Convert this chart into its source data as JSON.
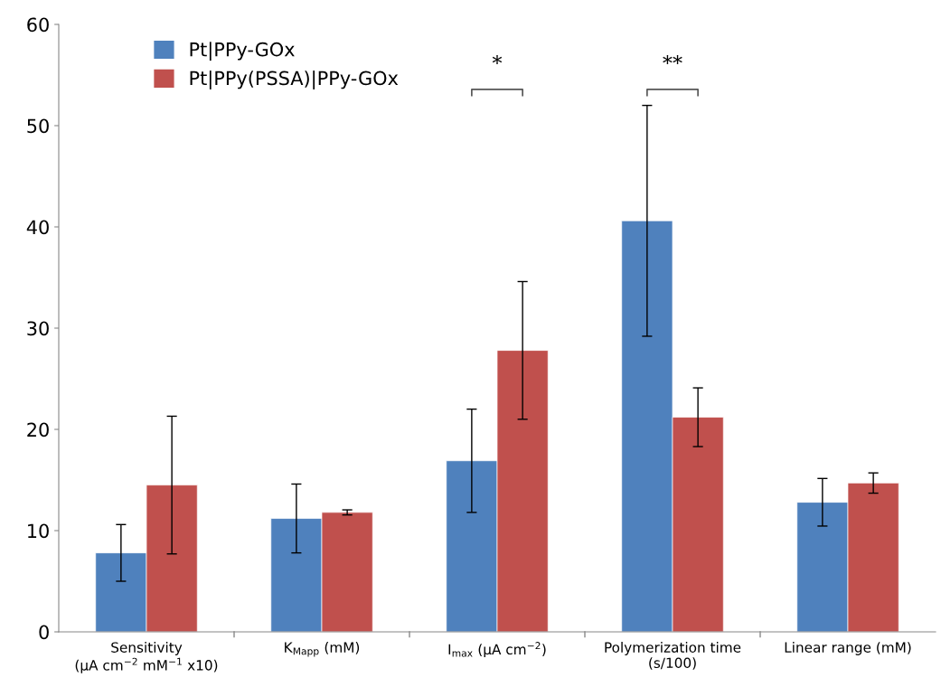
{
  "chart_data": {
    "type": "bar",
    "categories": [
      "Sensitivity\n(µA cm$^{−2}$ mM$^{−1}$ x10)",
      "K$_{Mapp}$ (mM)",
      "I$_{max}$ (µA cm$^{−2}$)",
      "Polymerization time\n(s/100)",
      "Linear range (mM)"
    ],
    "series": [
      {
        "name": "Pt|PPy-GOx",
        "color": "#4f81bd",
        "values": [
          7.8,
          11.2,
          16.9,
          40.6,
          12.8
        ],
        "errors": [
          2.8,
          3.4,
          5.1,
          11.4,
          2.35
        ]
      },
      {
        "name": "Pt|PPy(PSSA)|PPy-GOx",
        "color": "#c0504d",
        "values": [
          14.5,
          11.8,
          27.8,
          21.2,
          14.7
        ],
        "errors": [
          6.8,
          0.25,
          6.8,
          2.9,
          1.0
        ]
      }
    ],
    "ylim": [
      0,
      60
    ],
    "yticks": [
      0,
      10,
      20,
      30,
      40,
      50,
      60
    ],
    "grid": false,
    "legend": "top left",
    "annotations": [
      "*",
      "**"
    ]
  }
}
